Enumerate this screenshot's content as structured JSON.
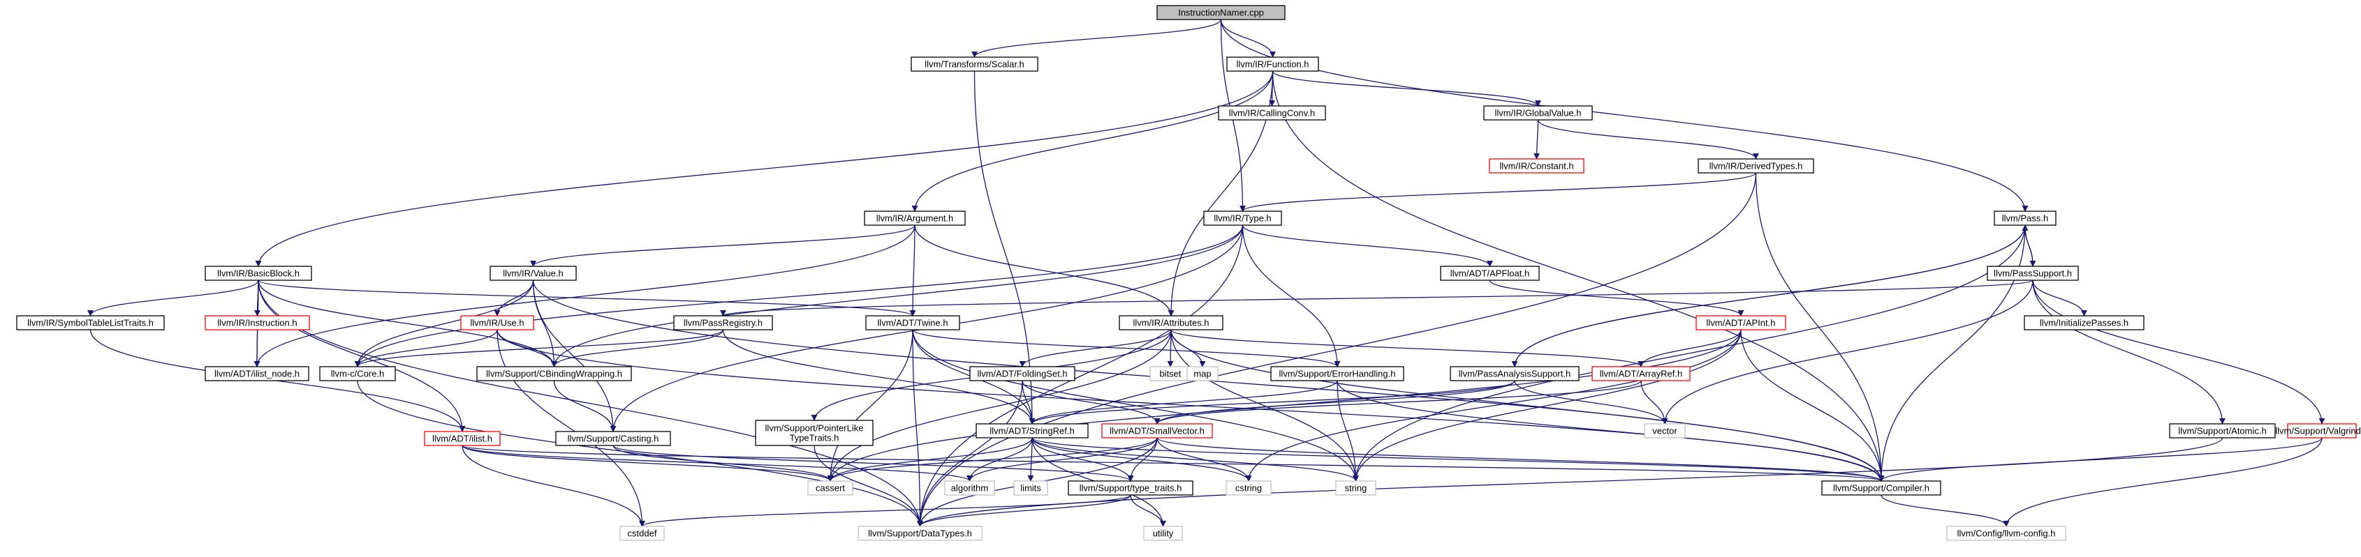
{
  "diagram": {
    "colors": {
      "edge": "#191970",
      "root_fill": "#bfbfbf",
      "missing_border": "#ff0000",
      "external_border": "#bfbfbf"
    },
    "nodes": [
      {
        "id": "root",
        "label": "InstructionNamer.cpp",
        "kind": "root"
      },
      {
        "id": "scalar",
        "label": "llvm/Transforms/Scalar.h",
        "kind": "normal"
      },
      {
        "id": "function",
        "label": "llvm/IR/Function.h",
        "kind": "normal"
      },
      {
        "id": "callingconv",
        "label": "llvm/IR/CallingConv.h",
        "kind": "normal"
      },
      {
        "id": "globalvalue",
        "label": "llvm/IR/GlobalValue.h",
        "kind": "normal"
      },
      {
        "id": "constant",
        "label": "llvm/IR/Constant.h",
        "kind": "red"
      },
      {
        "id": "derivedtypes",
        "label": "llvm/IR/DerivedTypes.h",
        "kind": "normal"
      },
      {
        "id": "argument",
        "label": "llvm/IR/Argument.h",
        "kind": "normal"
      },
      {
        "id": "type",
        "label": "llvm/IR/Type.h",
        "kind": "normal"
      },
      {
        "id": "pass",
        "label": "llvm/Pass.h",
        "kind": "normal"
      },
      {
        "id": "basicblock",
        "label": "llvm/IR/BasicBlock.h",
        "kind": "normal"
      },
      {
        "id": "value",
        "label": "llvm/IR/Value.h",
        "kind": "normal"
      },
      {
        "id": "apfloat",
        "label": "llvm/ADT/APFloat.h",
        "kind": "normal"
      },
      {
        "id": "passsupport",
        "label": "llvm/PassSupport.h",
        "kind": "normal"
      },
      {
        "id": "symtablelisttraits",
        "label": "llvm/IR/SymbolTableListTraits.h",
        "kind": "normal"
      },
      {
        "id": "instruction",
        "label": "llvm/IR/Instruction.h",
        "kind": "red"
      },
      {
        "id": "use",
        "label": "llvm/IR/Use.h",
        "kind": "red"
      },
      {
        "id": "twine",
        "label": "llvm/ADT/Twine.h",
        "kind": "normal"
      },
      {
        "id": "attributes",
        "label": "llvm/IR/Attributes.h",
        "kind": "normal"
      },
      {
        "id": "apint",
        "label": "llvm/ADT/APInt.h",
        "kind": "red"
      },
      {
        "id": "initializepasses",
        "label": "llvm/InitializePasses.h",
        "kind": "normal"
      },
      {
        "id": "ilistnode",
        "label": "llvm/ADT/ilist_node.h",
        "kind": "normal"
      },
      {
        "id": "llvmccore",
        "label": "llvm-c/Core.h",
        "kind": "normal"
      },
      {
        "id": "passregistry",
        "label": "llvm/PassRegistry.h",
        "kind": "normal"
      },
      {
        "id": "cbindingwrapping",
        "label": "llvm/Support/CBindingWrapping.h",
        "kind": "normal"
      },
      {
        "id": "foldingset",
        "label": "llvm/ADT/FoldingSet.h",
        "kind": "normal"
      },
      {
        "id": "bitset",
        "label": "bitset",
        "kind": "gray"
      },
      {
        "id": "map",
        "label": "map",
        "kind": "gray"
      },
      {
        "id": "errorhandling",
        "label": "llvm/Support/ErrorHandling.h",
        "kind": "normal"
      },
      {
        "id": "passanalysissupport",
        "label": "llvm/PassAnalysisSupport.h",
        "kind": "normal"
      },
      {
        "id": "arrayref",
        "label": "llvm/ADT/ArrayRef.h",
        "kind": "red"
      },
      {
        "id": "ilist",
        "label": "llvm/ADT/ilist.h",
        "kind": "red"
      },
      {
        "id": "casting",
        "label": "llvm/Support/Casting.h",
        "kind": "normal"
      },
      {
        "id": "pointerlike",
        "label": "llvm/Support/PointerLike\nTypeTraits.h",
        "kind": "normal"
      },
      {
        "id": "stringref",
        "label": "llvm/ADT/StringRef.h",
        "kind": "normal"
      },
      {
        "id": "smallvector",
        "label": "llvm/ADT/SmallVector.h",
        "kind": "red"
      },
      {
        "id": "vector",
        "label": "vector",
        "kind": "gray"
      },
      {
        "id": "atomic",
        "label": "llvm/Support/Atomic.h",
        "kind": "normal"
      },
      {
        "id": "valgrind",
        "label": "llvm/Support/Valgrind.h",
        "kind": "red"
      },
      {
        "id": "cassert",
        "label": "cassert",
        "kind": "gray"
      },
      {
        "id": "algorithm",
        "label": "algorithm",
        "kind": "gray"
      },
      {
        "id": "limits",
        "label": "limits",
        "kind": "gray"
      },
      {
        "id": "typetraits",
        "label": "llvm/Support/type_traits.h",
        "kind": "normal"
      },
      {
        "id": "cstring",
        "label": "cstring",
        "kind": "gray"
      },
      {
        "id": "string",
        "label": "string",
        "kind": "gray"
      },
      {
        "id": "compiler",
        "label": "llvm/Support/Compiler.h",
        "kind": "normal"
      },
      {
        "id": "cstddef",
        "label": "cstddef",
        "kind": "gray"
      },
      {
        "id": "datatypes",
        "label": "llvm/Support/DataTypes.h",
        "kind": "gray"
      },
      {
        "id": "utility",
        "label": "utility",
        "kind": "gray"
      },
      {
        "id": "llvmconfig",
        "label": "llvm/Config/llvm-config.h",
        "kind": "gray"
      }
    ],
    "edges": [
      [
        "root",
        "scalar"
      ],
      [
        "root",
        "function"
      ],
      [
        "root",
        "pass"
      ],
      [
        "root",
        "type"
      ],
      [
        "scalar",
        "stringref"
      ],
      [
        "function",
        "callingconv"
      ],
      [
        "function",
        "globalvalue"
      ],
      [
        "function",
        "argument"
      ],
      [
        "function",
        "basicblock"
      ],
      [
        "function",
        "attributes"
      ],
      [
        "function",
        "compiler"
      ],
      [
        "globalvalue",
        "constant"
      ],
      [
        "globalvalue",
        "derivedtypes"
      ],
      [
        "derivedtypes",
        "type"
      ],
      [
        "derivedtypes",
        "compiler"
      ],
      [
        "derivedtypes",
        "datatypes"
      ],
      [
        "argument",
        "value"
      ],
      [
        "argument",
        "twine"
      ],
      [
        "argument",
        "attributes"
      ],
      [
        "argument",
        "ilistnode"
      ],
      [
        "type",
        "apfloat"
      ],
      [
        "type",
        "errorhandling"
      ],
      [
        "type",
        "cbindingwrapping"
      ],
      [
        "type",
        "casting"
      ],
      [
        "type",
        "llvmccore"
      ],
      [
        "type",
        "datatypes"
      ],
      [
        "pass",
        "passsupport"
      ],
      [
        "pass",
        "passanalysissupport"
      ],
      [
        "pass",
        "compiler"
      ],
      [
        "pass",
        "string"
      ],
      [
        "passsupport",
        "pass"
      ],
      [
        "passsupport",
        "passregistry"
      ],
      [
        "passsupport",
        "initializepasses"
      ],
      [
        "passsupport",
        "atomic"
      ],
      [
        "passsupport",
        "valgrind"
      ],
      [
        "passsupport",
        "vector"
      ],
      [
        "basicblock",
        "symtablelisttraits"
      ],
      [
        "basicblock",
        "instruction"
      ],
      [
        "basicblock",
        "ilistnode"
      ],
      [
        "basicblock",
        "ilist"
      ],
      [
        "basicblock",
        "twine"
      ],
      [
        "basicblock",
        "cbindingwrapping"
      ],
      [
        "basicblock",
        "datatypes"
      ],
      [
        "value",
        "use"
      ],
      [
        "value",
        "llvmccore"
      ],
      [
        "value",
        "cbindingwrapping"
      ],
      [
        "value",
        "casting"
      ],
      [
        "value",
        "compiler"
      ],
      [
        "apfloat",
        "apint"
      ],
      [
        "symtablelisttraits",
        "ilist"
      ],
      [
        "instruction",
        "ilistnode"
      ],
      [
        "use",
        "llvmccore"
      ],
      [
        "use",
        "cbindingwrapping"
      ],
      [
        "use",
        "compiler"
      ],
      [
        "use",
        "cstddef"
      ],
      [
        "twine",
        "stringref"
      ],
      [
        "twine",
        "errorhandling"
      ],
      [
        "twine",
        "cassert"
      ],
      [
        "twine",
        "string"
      ],
      [
        "twine",
        "datatypes"
      ],
      [
        "attributes",
        "foldingset"
      ],
      [
        "attributes",
        "bitset"
      ],
      [
        "attributes",
        "map"
      ],
      [
        "attributes",
        "string"
      ],
      [
        "attributes",
        "arrayref"
      ],
      [
        "attributes",
        "pointerlike"
      ],
      [
        "attributes",
        "cassert"
      ],
      [
        "attributes",
        "compiler"
      ],
      [
        "apint",
        "arrayref"
      ],
      [
        "apint",
        "compiler"
      ],
      [
        "apint",
        "cassert"
      ],
      [
        "apint",
        "cstring"
      ],
      [
        "apint",
        "string"
      ],
      [
        "passregistry",
        "stringref"
      ],
      [
        "passregistry",
        "llvmccore"
      ],
      [
        "passregistry",
        "cbindingwrapping"
      ],
      [
        "llvmccore",
        "datatypes"
      ],
      [
        "cbindingwrapping",
        "casting"
      ],
      [
        "foldingset",
        "smallvector"
      ],
      [
        "foldingset",
        "stringref"
      ],
      [
        "foldingset",
        "datatypes"
      ],
      [
        "errorhandling",
        "stringref"
      ],
      [
        "errorhandling",
        "compiler"
      ],
      [
        "errorhandling",
        "string"
      ],
      [
        "passanalysissupport",
        "pass"
      ],
      [
        "passanalysissupport",
        "stringref"
      ],
      [
        "passanalysissupport",
        "smallvector"
      ],
      [
        "passanalysissupport",
        "vector"
      ],
      [
        "arrayref",
        "smallvector"
      ],
      [
        "arrayref",
        "vector"
      ],
      [
        "ilist",
        "compiler"
      ],
      [
        "ilist",
        "algorithm"
      ],
      [
        "ilist",
        "cassert"
      ],
      [
        "ilist",
        "cstddef"
      ],
      [
        "casting",
        "typetraits"
      ],
      [
        "casting",
        "cassert"
      ],
      [
        "pointerlike",
        "datatypes"
      ],
      [
        "stringref",
        "compiler"
      ],
      [
        "stringref",
        "algorithm"
      ],
      [
        "stringref",
        "cassert"
      ],
      [
        "stringref",
        "cstring"
      ],
      [
        "stringref",
        "limits"
      ],
      [
        "stringref",
        "string"
      ],
      [
        "stringref",
        "utility"
      ],
      [
        "stringref",
        "typetraits"
      ],
      [
        "smallvector",
        "algorithm"
      ],
      [
        "smallvector",
        "cassert"
      ],
      [
        "smallvector",
        "cstring"
      ],
      [
        "smallvector",
        "typetraits"
      ],
      [
        "smallvector",
        "compiler"
      ],
      [
        "smallvector",
        "datatypes"
      ],
      [
        "atomic",
        "datatypes"
      ],
      [
        "valgrind",
        "compiler"
      ],
      [
        "valgrind",
        "llvmconfig"
      ],
      [
        "typetraits",
        "datatypes"
      ],
      [
        "typetraits",
        "cstddef"
      ],
      [
        "typetraits",
        "utility"
      ],
      [
        "compiler",
        "llvmconfig"
      ]
    ]
  }
}
